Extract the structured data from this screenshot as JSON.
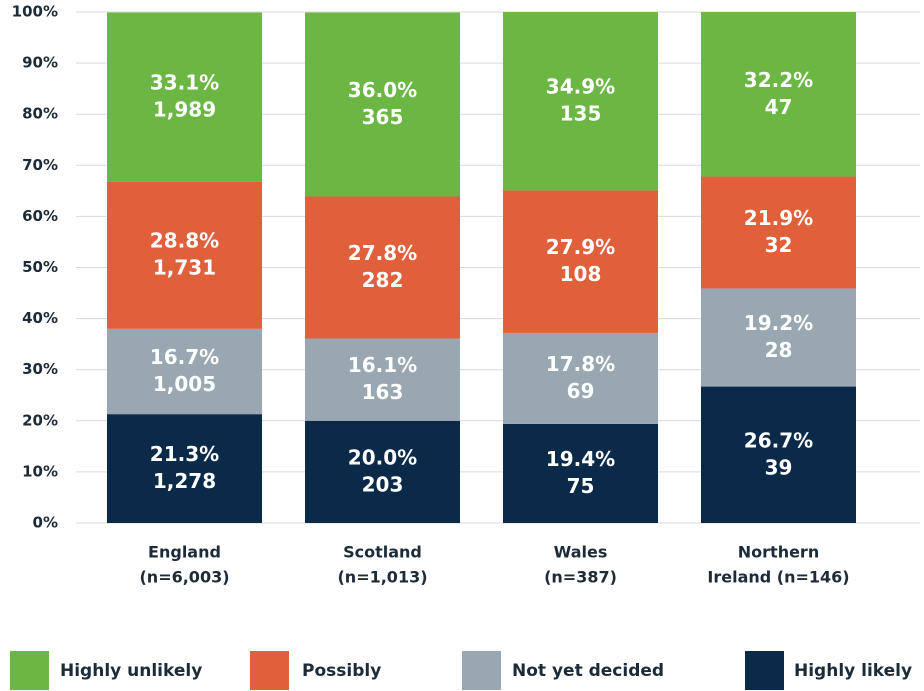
{
  "chart_data": {
    "type": "stacked_bar",
    "categories": [
      [
        "England",
        "(n=6,003)"
      ],
      [
        "Scotland",
        "(n=1,013)"
      ],
      [
        "Wales",
        "(n=387)"
      ],
      [
        "Northern",
        "Ireland (n=146)"
      ]
    ],
    "series": [
      {
        "name": "Highly likely",
        "color": "#0b2a4a",
        "values": [
          21.3,
          20.0,
          19.4,
          26.7
        ],
        "value_labels": [
          "21.3%",
          "20.0%",
          "19.4%",
          "26.7%"
        ],
        "counts": [
          "1,278",
          "203",
          "75",
          "39"
        ]
      },
      {
        "name": "Not yet decided",
        "color": "#98a7b1",
        "values": [
          16.7,
          16.1,
          17.8,
          19.2
        ],
        "value_labels": [
          "16.7%",
          "16.1%",
          "17.8%",
          "19.2%"
        ],
        "counts": [
          "1,005",
          "163",
          "69",
          "28"
        ]
      },
      {
        "name": "Possibly",
        "color": "#e0603b",
        "values": [
          28.8,
          27.8,
          27.9,
          21.9
        ],
        "value_labels": [
          "28.8%",
          "27.8%",
          "27.9%",
          "21.9%"
        ],
        "counts": [
          "1,731",
          "282",
          "108",
          "32"
        ]
      },
      {
        "name": "Highly unlikely",
        "color": "#6cb644",
        "values": [
          33.1,
          36.0,
          34.9,
          32.2
        ],
        "value_labels": [
          "33.1%",
          "36.0%",
          "34.9%",
          "32.2%"
        ],
        "counts": [
          "1,989",
          "365",
          "135",
          "47"
        ]
      }
    ],
    "ylim": [
      0,
      100
    ],
    "yticks": [
      {
        "value": 0,
        "label": "0%"
      },
      {
        "value": 10,
        "label": "10%"
      },
      {
        "value": 20,
        "label": "20%"
      },
      {
        "value": 30,
        "label": "30%"
      },
      {
        "value": 40,
        "label": "40%"
      },
      {
        "value": 50,
        "label": "50%"
      },
      {
        "value": 60,
        "label": "60%"
      },
      {
        "value": 70,
        "label": "70%"
      },
      {
        "value": 80,
        "label": "80%"
      },
      {
        "value": 90,
        "label": "90%"
      },
      {
        "value": 100,
        "label": "100%"
      }
    ],
    "grid": true
  }
}
